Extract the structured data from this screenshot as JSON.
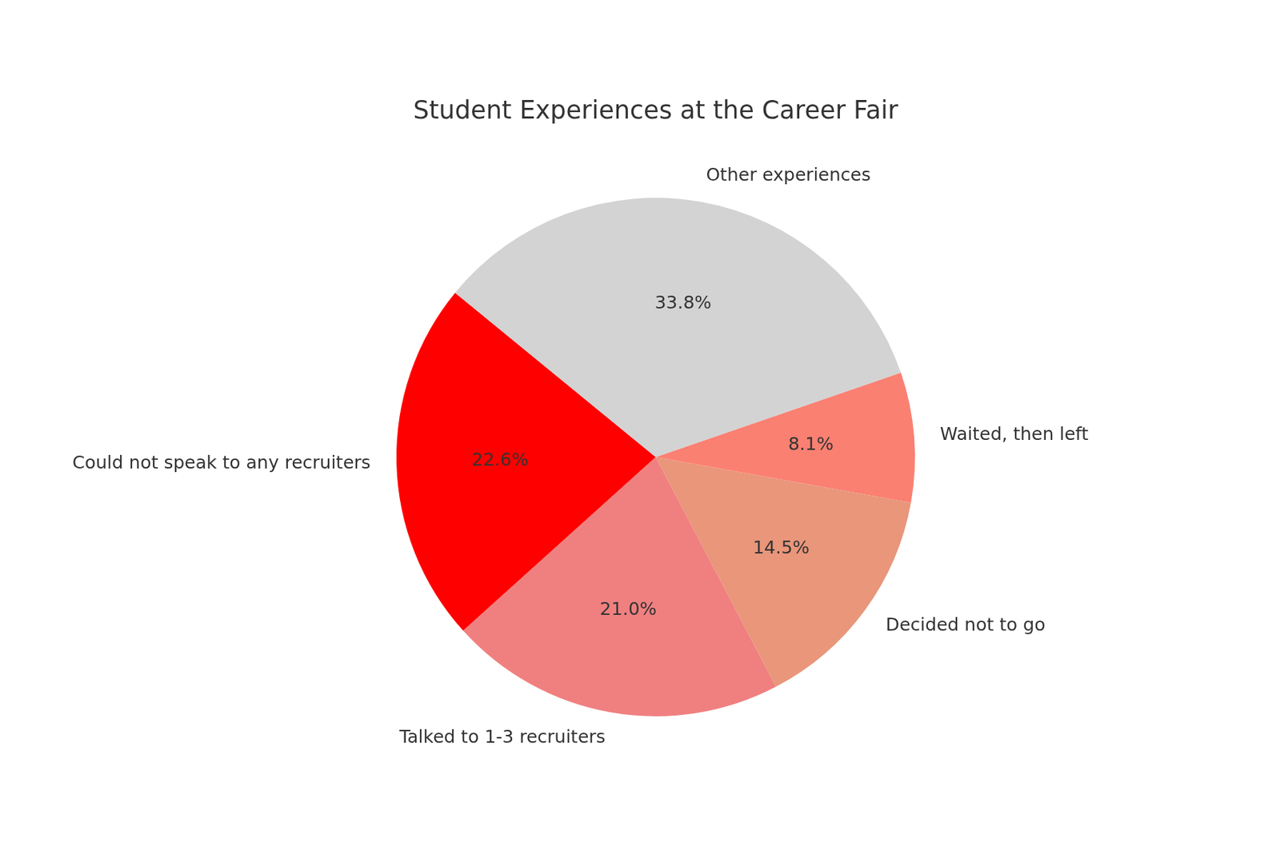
{
  "chart_data": {
    "type": "pie",
    "title": "Student Experiences at the Career Fair",
    "categories": [
      "Waited, then left",
      "Decided not to go",
      "Talked to 1-3 recruiters",
      "Could not speak to any recruiters",
      "Other experiences"
    ],
    "values": [
      8.1,
      14.5,
      21.0,
      22.6,
      33.8
    ],
    "value_labels": [
      "8.1%",
      "14.5%",
      "21.0%",
      "22.6%",
      "33.8%"
    ],
    "colors": [
      "#fa8072",
      "#e9967a",
      "#f08080",
      "#ff0000",
      "#d3d3d3"
    ],
    "data_labels": true
  }
}
